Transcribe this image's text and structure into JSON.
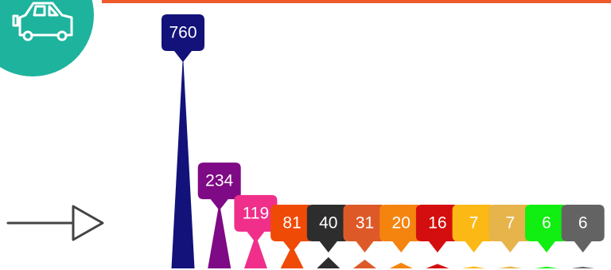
{
  "colors": {
    "accent_line": "#ee5a2c",
    "badge": "#1eb39d",
    "arrow": "#444444"
  },
  "icons": [
    "car-icon",
    "arrow-right-icon"
  ],
  "chart_data": {
    "type": "bar",
    "title": "",
    "xlabel": "",
    "ylabel": "",
    "grid": false,
    "legend": "none",
    "categories": [],
    "values": [
      760,
      234,
      119,
      81,
      40,
      31,
      20,
      16,
      7,
      7,
      6,
      6
    ],
    "labels": [
      "760",
      "234",
      "119",
      "81",
      "40",
      "31",
      "20",
      "16",
      "7",
      "7",
      "6",
      "6"
    ],
    "colors": [
      "#12127a",
      "#7f0a85",
      "#ef2f8a",
      "#f04a07",
      "#2d2d2d",
      "#dd5a28",
      "#f5840f",
      "#d40e0e",
      "#fcb814",
      "#e6b44a",
      "#11ee11",
      "#636363"
    ]
  }
}
